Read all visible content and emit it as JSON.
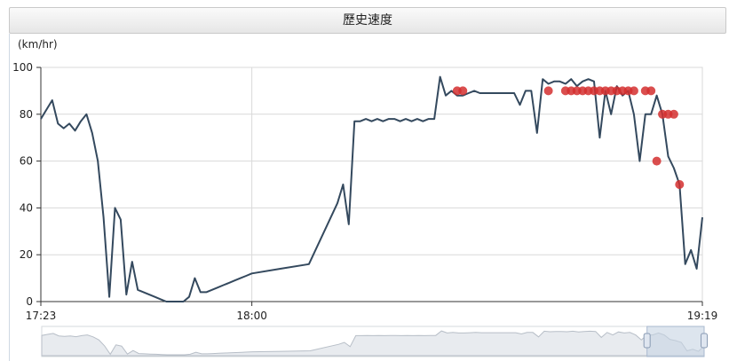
{
  "panel": {
    "title": "歷史速度"
  },
  "chart_data": {
    "type": "line",
    "title": "歷史速度",
    "ylabel": "(km/hr)",
    "xlabel": "",
    "ylim": [
      0,
      100
    ],
    "yticks": [
      0,
      20,
      40,
      60,
      80,
      100
    ],
    "xlim": [
      "17:23",
      "19:19"
    ],
    "xticks": [
      "17:23",
      "18:00",
      "19:19"
    ],
    "grid": true,
    "colors": {
      "line": "#34495e",
      "markers": "#d32f2f",
      "grid": "#d9d9d9",
      "navigator_fill": "#e8ebef",
      "navigator_window": "#c7d3e3"
    },
    "series": [
      {
        "x": [
          "17:23",
          "17:24",
          "17:25",
          "17:26",
          "17:27",
          "17:28",
          "17:29",
          "17:30",
          "17:31",
          "17:32",
          "17:33",
          "17:34",
          "17:35",
          "17:36",
          "17:37",
          "17:38",
          "17:39",
          "17:40",
          "17:41",
          "17:42",
          "17:43",
          "17:44",
          "17:45",
          "17:46",
          "17:47",
          "17:48",
          "17:49",
          "17:50",
          "17:51",
          "17:52",
          "17:53",
          "17:54",
          "17:55",
          "17:56",
          "17:57",
          "17:58",
          "17:59",
          "18:00",
          "18:05",
          "18:10",
          "18:15",
          "18:16",
          "18:17",
          "18:18",
          "18:19",
          "18:20",
          "18:21",
          "18:22",
          "18:23",
          "18:24",
          "18:25",
          "18:26",
          "18:27",
          "18:28",
          "18:29",
          "18:30",
          "18:31",
          "18:32",
          "18:33",
          "18:34",
          "18:35",
          "18:36",
          "18:37",
          "18:38",
          "18:39",
          "18:40",
          "18:41",
          "18:42",
          "18:43",
          "18:44",
          "18:45",
          "18:46",
          "18:47",
          "18:48",
          "18:49",
          "18:50",
          "18:51",
          "18:52",
          "18:53",
          "18:54",
          "18:55",
          "18:56",
          "18:57",
          "18:58",
          "18:59",
          "19:00",
          "19:01",
          "19:02",
          "19:03",
          "19:04",
          "19:05",
          "19:06",
          "19:07",
          "19:08",
          "19:09",
          "19:10",
          "19:11",
          "19:12",
          "19:13",
          "19:14",
          "19:15",
          "19:16",
          "19:17",
          "19:18",
          "19:19"
        ],
        "y": [
          78,
          82,
          86,
          76,
          74,
          76,
          73,
          77,
          80,
          72,
          60,
          36,
          2,
          40,
          35,
          3,
          17,
          5,
          4,
          3,
          2,
          1,
          0,
          0,
          0,
          0,
          2,
          10,
          4,
          4,
          5,
          6,
          7,
          8,
          9,
          10,
          11,
          12,
          14,
          16,
          42,
          50,
          33,
          77,
          77,
          78,
          77,
          78,
          77,
          78,
          78,
          77,
          78,
          77,
          78,
          77,
          78,
          78,
          96,
          88,
          90,
          88,
          88,
          89,
          90,
          89,
          89,
          89,
          89,
          89,
          89,
          89,
          84,
          90,
          90,
          72,
          95,
          93,
          94,
          94,
          93,
          95,
          92,
          94,
          95,
          94,
          70,
          90,
          80,
          92,
          88,
          90,
          80,
          60,
          80,
          80,
          88,
          80,
          62,
          57,
          50,
          16,
          22,
          14,
          36
        ]
      }
    ],
    "markers": [
      {
        "x": "18:36",
        "y": 90
      },
      {
        "x": "18:37",
        "y": 90
      },
      {
        "x": "18:52",
        "y": 90
      },
      {
        "x": "18:55",
        "y": 90
      },
      {
        "x": "18:56",
        "y": 90
      },
      {
        "x": "18:57",
        "y": 90
      },
      {
        "x": "18:58",
        "y": 90
      },
      {
        "x": "18:59",
        "y": 90
      },
      {
        "x": "19:00",
        "y": 90
      },
      {
        "x": "19:01",
        "y": 90
      },
      {
        "x": "19:02",
        "y": 90
      },
      {
        "x": "19:03",
        "y": 90
      },
      {
        "x": "19:04",
        "y": 90
      },
      {
        "x": "19:05",
        "y": 90
      },
      {
        "x": "19:06",
        "y": 90
      },
      {
        "x": "19:07",
        "y": 90
      },
      {
        "x": "19:09",
        "y": 90
      },
      {
        "x": "19:10",
        "y": 90
      },
      {
        "x": "19:11",
        "y": 60
      },
      {
        "x": "19:12",
        "y": 80
      },
      {
        "x": "19:13",
        "y": 80
      },
      {
        "x": "19:14",
        "y": 80
      },
      {
        "x": "19:15",
        "y": 50
      }
    ],
    "navigator": {
      "window": [
        "19:09",
        "19:19"
      ]
    }
  }
}
